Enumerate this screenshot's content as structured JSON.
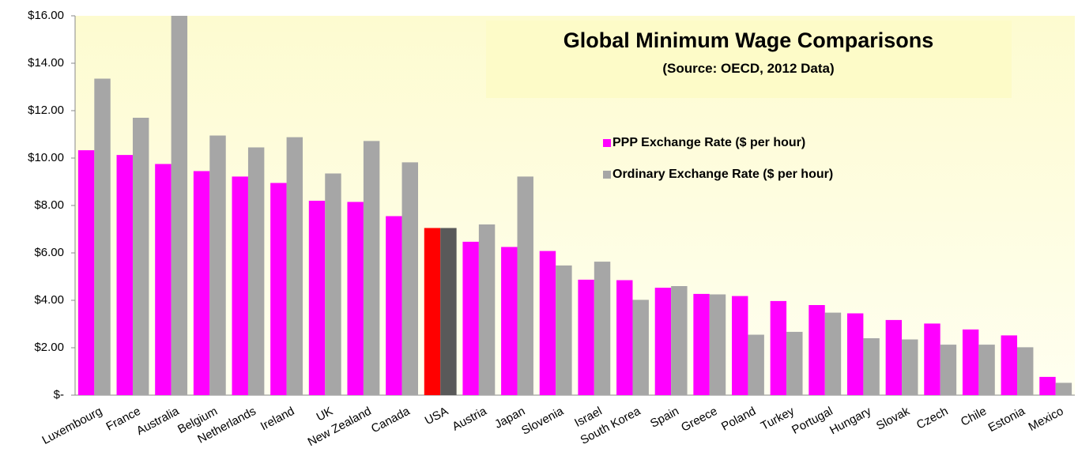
{
  "chart_data": {
    "type": "bar",
    "title": "Global Minimum Wage Comparisons",
    "subtitle": "(Source:  OECD, 2012 Data)",
    "categories": [
      "Luxembourg",
      "France",
      "Australia",
      "Belgium",
      "Netherlands",
      "Ireland",
      "UK",
      "New Zealand",
      "Canada",
      "USA",
      "Austria",
      "Japan",
      "Slovenia",
      "Israel",
      "South Korea",
      "Spain",
      "Greece",
      "Poland",
      "Turkey",
      "Portugal",
      "Hungary",
      "Slovak",
      "Czech",
      "Chile",
      "Estonia",
      "Mexico"
    ],
    "series": [
      {
        "name": "PPP Exchange Rate  ($ per hour)",
        "color": "#ff00ff",
        "values": [
          10.33,
          10.13,
          9.75,
          9.45,
          9.22,
          8.95,
          8.2,
          8.15,
          7.55,
          7.05,
          6.47,
          6.25,
          6.08,
          4.87,
          4.85,
          4.53,
          4.27,
          4.18,
          3.97,
          3.8,
          3.45,
          3.17,
          3.02,
          2.77,
          2.52,
          0.77
        ]
      },
      {
        "name": "Ordinary Exchange Rate ($ per hour)",
        "color": "#a6a6a6",
        "values": [
          13.35,
          11.7,
          16.0,
          10.95,
          10.45,
          10.88,
          9.35,
          10.72,
          9.82,
          7.05,
          7.2,
          9.22,
          5.47,
          5.63,
          4.02,
          4.6,
          4.25,
          2.55,
          2.67,
          3.48,
          2.4,
          2.35,
          2.13,
          2.13,
          2.02,
          0.52
        ]
      }
    ],
    "highlight": {
      "category": "USA",
      "colors": [
        "#ff0000",
        "#595959"
      ]
    },
    "ylim": [
      0,
      16
    ],
    "yticks": [
      {
        "value": 0,
        "label": "$-"
      },
      {
        "value": 2,
        "label": "$2.00"
      },
      {
        "value": 4,
        "label": "$4.00"
      },
      {
        "value": 6,
        "label": "$6.00"
      },
      {
        "value": 8,
        "label": "$8.00"
      },
      {
        "value": 10,
        "label": "$10.00"
      },
      {
        "value": 12,
        "label": "$12.00"
      },
      {
        "value": 14,
        "label": "$14.00"
      },
      {
        "value": 16,
        "label": "$16.00"
      }
    ],
    "legend": "inside",
    "grid": false
  }
}
